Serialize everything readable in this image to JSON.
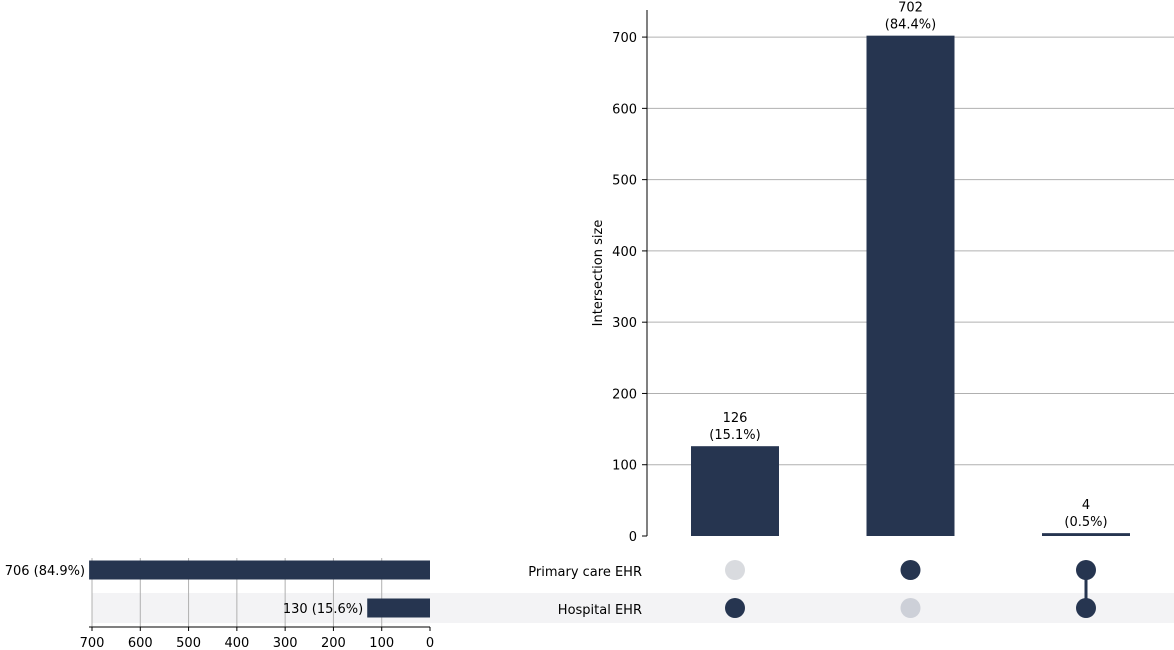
{
  "chart_data": {
    "type": "upset",
    "colors": {
      "bar": "#263550",
      "dot_active": "#263550",
      "dot_inactive_row1": "#d9dbdf",
      "dot_inactive_row2": "#cdd0d8",
      "row_shade": "#f3f3f5",
      "grid": "#b0b0b0"
    },
    "sets": [
      {
        "name": "Primary care EHR",
        "size": 706,
        "label": "706 (84.9%)"
      },
      {
        "name": "Hospital EHR",
        "size": 130,
        "label": "130 (15.6%)"
      }
    ],
    "set_size_axis": {
      "ticks": [
        700,
        600,
        500,
        400,
        300,
        200,
        100,
        0
      ],
      "xlim": [
        700,
        0
      ],
      "grid": true
    },
    "intersections": [
      {
        "members": [
          false,
          true
        ],
        "size": 126,
        "label_count": "126",
        "label_pct": "(15.1%)"
      },
      {
        "members": [
          true,
          false
        ],
        "size": 702,
        "label_count": "702",
        "label_pct": "(84.4%)"
      },
      {
        "members": [
          true,
          true
        ],
        "size": 4,
        "label_count": "4",
        "label_pct": "(0.5%)"
      }
    ],
    "intersection_axis": {
      "ylabel": "Intersection size",
      "ticks": [
        0,
        100,
        200,
        300,
        400,
        500,
        600,
        700
      ],
      "ylim": [
        0,
        738
      ],
      "grid": true
    }
  }
}
